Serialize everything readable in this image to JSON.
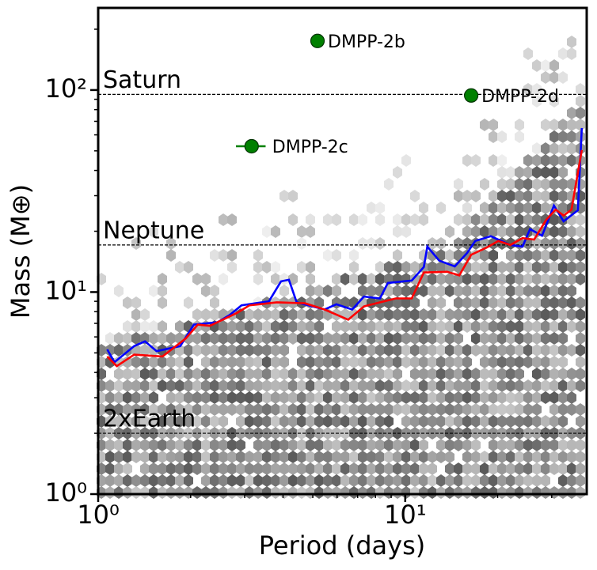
{
  "chart_data": {
    "type": "scatter",
    "xlabel": "Period (days)",
    "ylabel": "Mass (M⊕)",
    "xscale": "log",
    "yscale": "log",
    "xlim": [
      1,
      39
    ],
    "ylim": [
      1,
      255
    ],
    "xticks": [
      {
        "value": 1,
        "label": "10⁰"
      },
      {
        "value": 10,
        "label": "10¹"
      }
    ],
    "yticks": [
      {
        "value": 1,
        "label": "10⁰"
      },
      {
        "value": 10,
        "label": "10¹"
      },
      {
        "value": 100,
        "label": "10²"
      }
    ],
    "xminorticks": [
      2,
      3,
      4,
      5,
      6,
      7,
      8,
      9,
      20,
      30
    ],
    "yminorticks": [
      2,
      3,
      4,
      5,
      6,
      7,
      8,
      9,
      20,
      30,
      40,
      50,
      60,
      70,
      80,
      90,
      200
    ],
    "reference_lines": [
      {
        "label": "Saturn",
        "value": 95.2
      },
      {
        "label": "Neptune",
        "value": 17.1
      },
      {
        "label": "2xEarth",
        "value": 2
      }
    ],
    "points": {
      "color": "#008000",
      "names": [
        "DMPP-2b",
        "DMPP-2c",
        "DMPP-2d"
      ],
      "x": [
        5.18,
        3.16,
        16.4
      ],
      "values": [
        175,
        52.7,
        94
      ],
      "xerr": [
        0.05,
        0.35,
        0.1
      ]
    },
    "lines": [
      {
        "color": "#0000ff",
        "x": [
          1.07,
          1.13,
          1.31,
          1.42,
          1.55,
          1.85,
          2.05,
          2.45,
          2.68,
          2.93,
          3.6,
          3.94,
          4.18,
          4.43,
          5.46,
          5.97,
          6.72,
          7.34,
          8.27,
          8.78,
          10.5,
          11.5,
          11.8,
          12.9,
          14.5,
          15.9,
          16.9,
          19.0,
          22.0,
          24.1,
          25.5,
          27.9,
          30.5,
          32.8,
          36.5,
          37.6
        ],
        "values": [
          5.2,
          4.5,
          5.4,
          5.7,
          5.1,
          5.4,
          6.9,
          7.1,
          7.7,
          8.6,
          9.0,
          11.3,
          11.5,
          8.9,
          8.2,
          8.7,
          8.2,
          9.5,
          9.3,
          11.1,
          11.4,
          13.3,
          16.8,
          14.3,
          13.4,
          15.6,
          17.9,
          18.9,
          17.1,
          16.8,
          20.5,
          19.0,
          26.8,
          22.4,
          25.4,
          64.9
        ]
      },
      {
        "color": "#ff0000",
        "x": [
          1.07,
          1.15,
          1.31,
          1.62,
          1.93,
          2.11,
          2.31,
          2.84,
          3.11,
          3.82,
          4.71,
          5.46,
          6.52,
          7.34,
          9.31,
          10.5,
          11.5,
          13.7,
          15.0,
          16.4,
          18.4,
          20.1,
          22.0,
          24.1,
          26.3,
          28.8,
          30.9,
          32.8,
          34.8,
          37.6
        ],
        "values": [
          4.8,
          4.3,
          4.9,
          4.8,
          5.9,
          6.9,
          6.8,
          7.9,
          8.6,
          8.9,
          8.8,
          8.2,
          7.3,
          8.5,
          9.3,
          9.3,
          12.5,
          12.6,
          12.1,
          15.3,
          16.6,
          17.9,
          17.1,
          18.5,
          18.2,
          22.8,
          25.6,
          23.9,
          25.6,
          50.4
        ]
      }
    ]
  }
}
